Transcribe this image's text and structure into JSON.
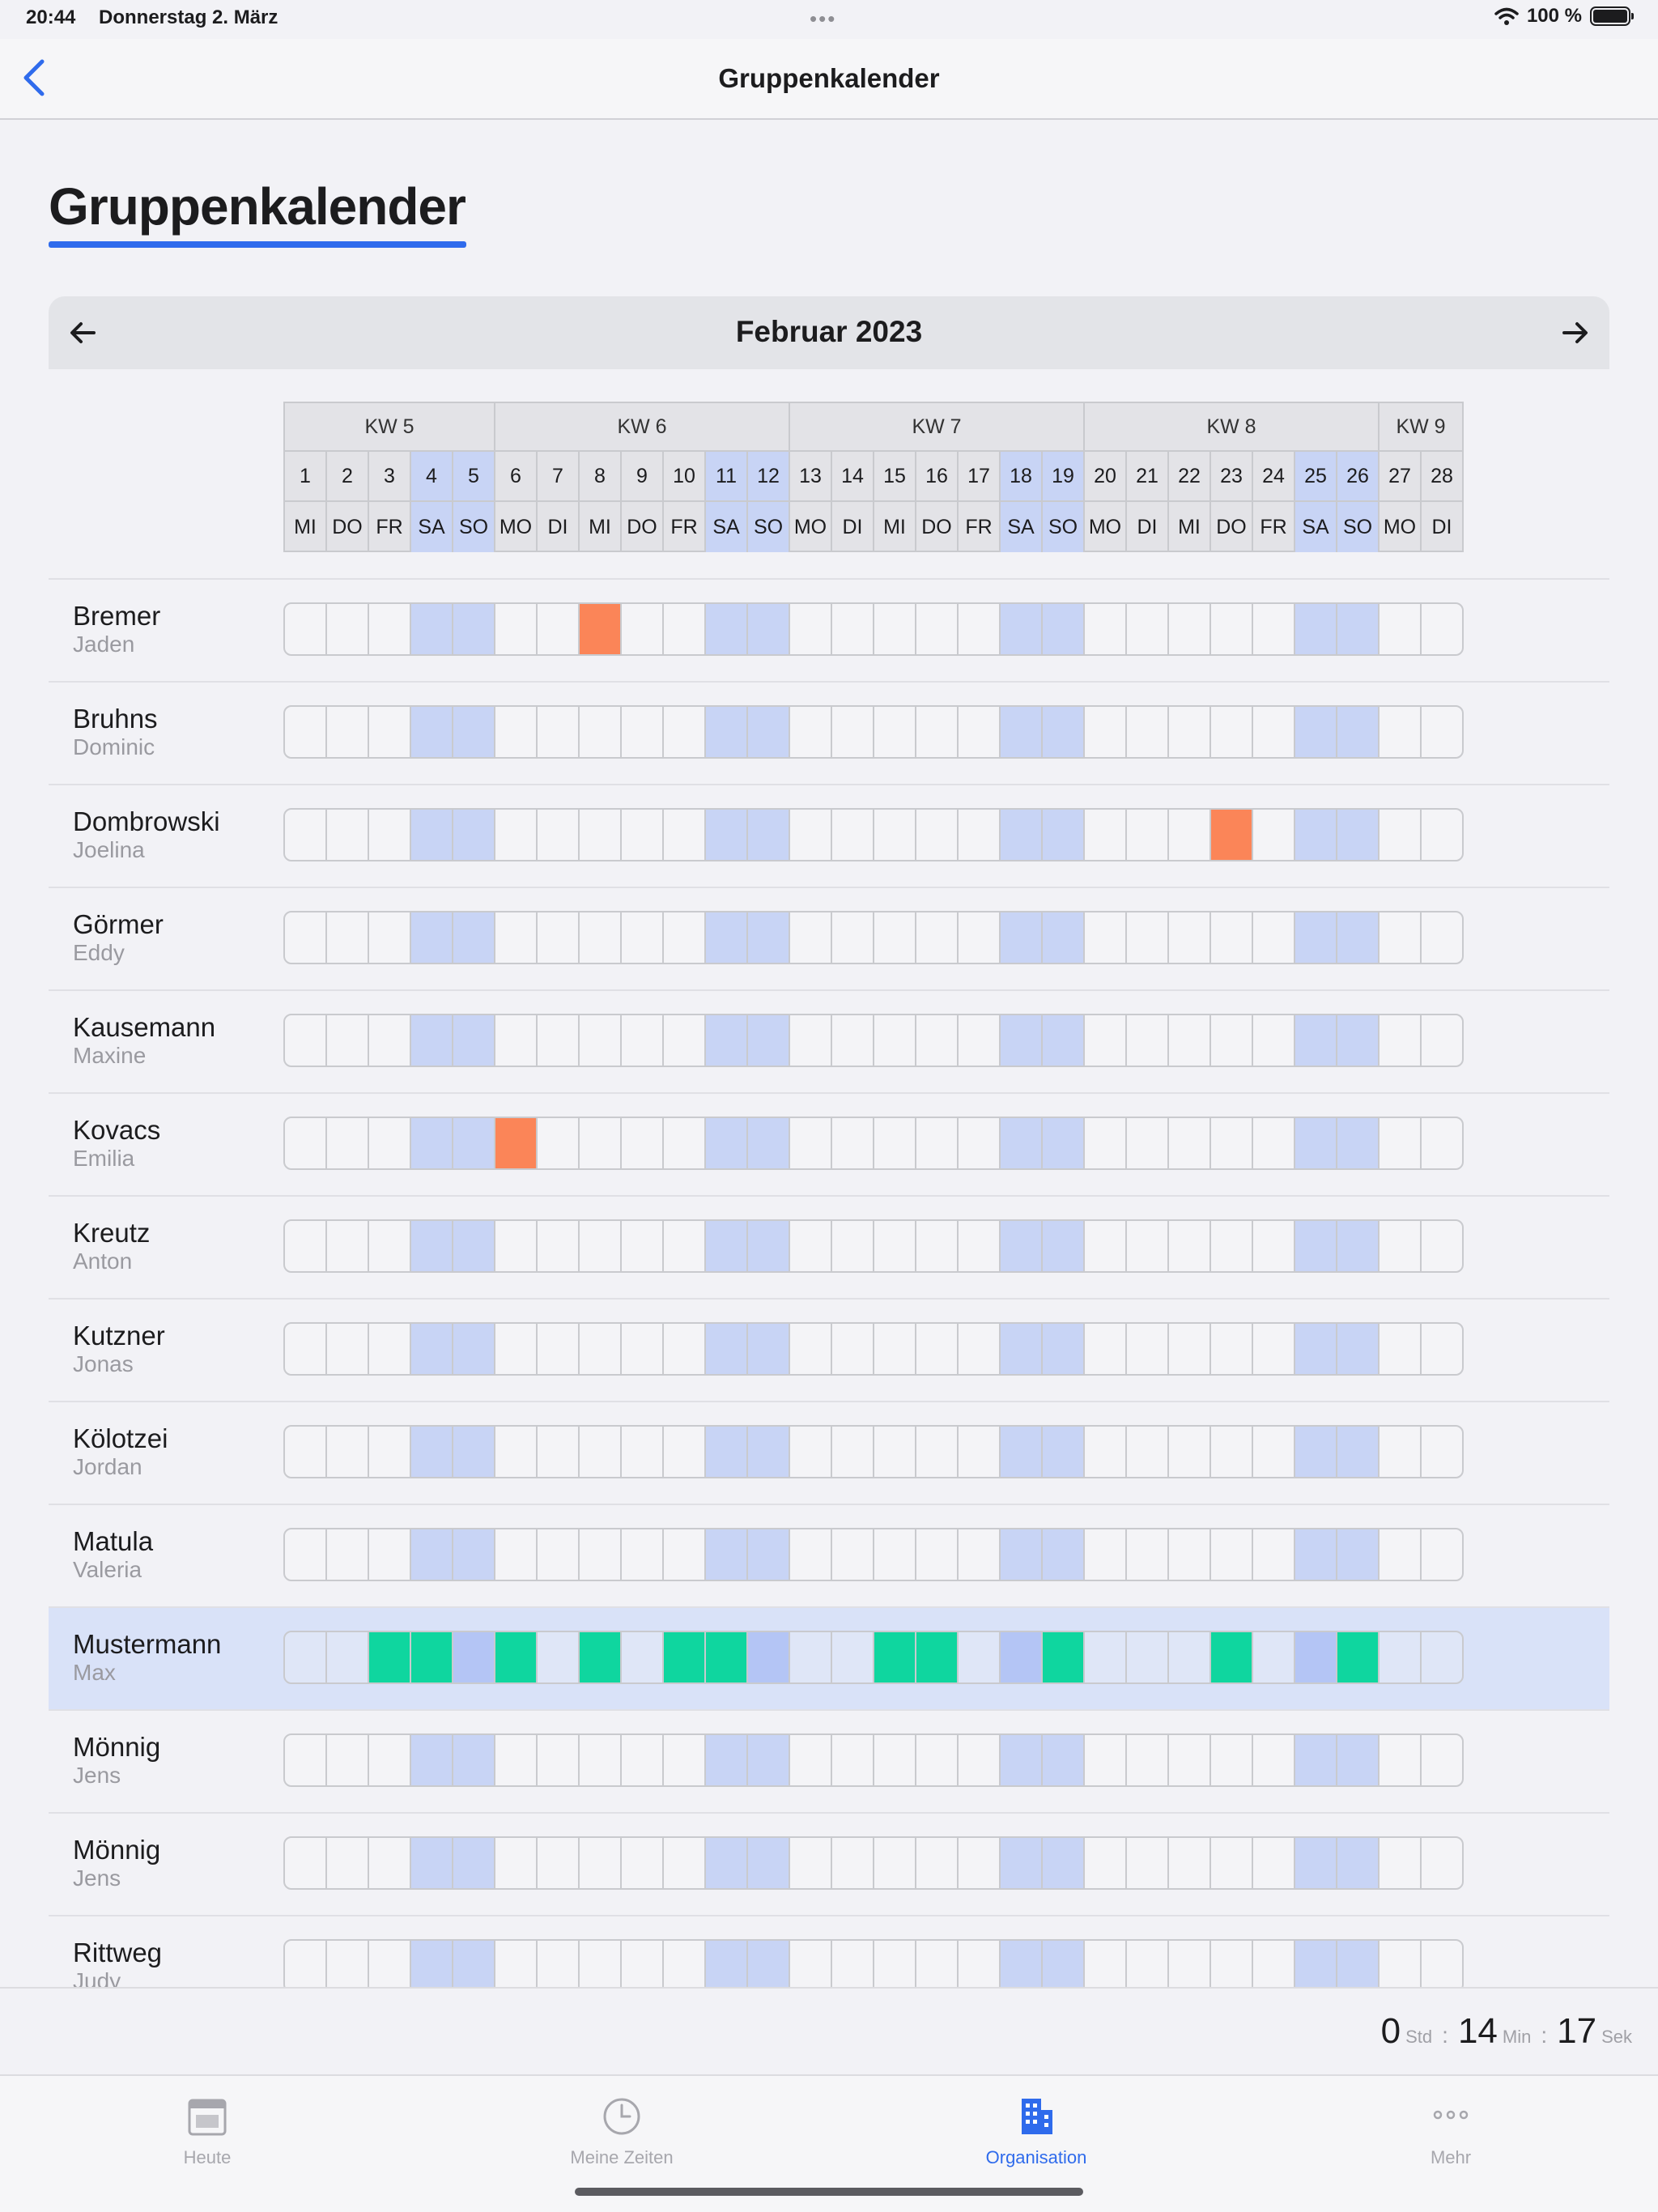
{
  "status_bar": {
    "time": "20:44",
    "date": "Donnerstag 2. März",
    "battery": "100 %"
  },
  "nav": {
    "title": "Gruppenkalender"
  },
  "page": {
    "title": "Gruppenkalender"
  },
  "calendar": {
    "month": "Februar 2023",
    "weeks": [
      {
        "label": "KW 5",
        "days": 5
      },
      {
        "label": "KW 6",
        "days": 7
      },
      {
        "label": "KW 7",
        "days": 7
      },
      {
        "label": "KW 8",
        "days": 7
      },
      {
        "label": "KW 9",
        "days": 2
      }
    ],
    "days": [
      {
        "num": "1",
        "dow": "MI"
      },
      {
        "num": "2",
        "dow": "DO"
      },
      {
        "num": "3",
        "dow": "FR"
      },
      {
        "num": "4",
        "dow": "SA"
      },
      {
        "num": "5",
        "dow": "SO"
      },
      {
        "num": "6",
        "dow": "MO"
      },
      {
        "num": "7",
        "dow": "DI"
      },
      {
        "num": "8",
        "dow": "MI"
      },
      {
        "num": "9",
        "dow": "DO"
      },
      {
        "num": "10",
        "dow": "FR"
      },
      {
        "num": "11",
        "dow": "SA"
      },
      {
        "num": "12",
        "dow": "SO"
      },
      {
        "num": "13",
        "dow": "MO"
      },
      {
        "num": "14",
        "dow": "DI"
      },
      {
        "num": "15",
        "dow": "MI"
      },
      {
        "num": "16",
        "dow": "DO"
      },
      {
        "num": "17",
        "dow": "FR"
      },
      {
        "num": "18",
        "dow": "SA"
      },
      {
        "num": "19",
        "dow": "SO"
      },
      {
        "num": "20",
        "dow": "MO"
      },
      {
        "num": "21",
        "dow": "DI"
      },
      {
        "num": "22",
        "dow": "MI"
      },
      {
        "num": "23",
        "dow": "DO"
      },
      {
        "num": "24",
        "dow": "FR"
      },
      {
        "num": "25",
        "dow": "SA"
      },
      {
        "num": "26",
        "dow": "SO"
      },
      {
        "num": "27",
        "dow": "MO"
      },
      {
        "num": "28",
        "dow": "DI"
      }
    ],
    "colors": {
      "weekend": "#c8d4f5",
      "absent": "#fb8558",
      "present": "#0fd69f",
      "accent": "#2f6bec"
    },
    "employees": [
      {
        "last": "Bremer",
        "first": "Jaden",
        "absent": [
          8
        ],
        "present": []
      },
      {
        "last": "Bruhns",
        "first": "Dominic",
        "absent": [],
        "present": []
      },
      {
        "last": "Dombrowski",
        "first": "Joelina",
        "absent": [
          23
        ],
        "present": []
      },
      {
        "last": "Görmer",
        "first": "Eddy",
        "absent": [],
        "present": []
      },
      {
        "last": "Kausemann",
        "first": "Maxine",
        "absent": [],
        "present": []
      },
      {
        "last": "Kovacs",
        "first": "Emilia",
        "absent": [
          6
        ],
        "present": []
      },
      {
        "last": "Kreutz",
        "first": "Anton",
        "absent": [],
        "present": []
      },
      {
        "last": "Kutzner",
        "first": "Jonas",
        "absent": [],
        "present": []
      },
      {
        "last": "Kölotzei",
        "first": "Jordan",
        "absent": [],
        "present": []
      },
      {
        "last": "Matula",
        "first": "Valeria",
        "absent": [],
        "present": []
      },
      {
        "last": "Mustermann",
        "first": "Max",
        "absent": [],
        "present": [
          3,
          4,
          6,
          8,
          10,
          11,
          15,
          16,
          19,
          23,
          26
        ],
        "highlight": true
      },
      {
        "last": "Mönnig",
        "first": "Jens",
        "absent": [],
        "present": []
      },
      {
        "last": "Mönnig",
        "first": "Jens",
        "absent": [],
        "present": []
      },
      {
        "last": "Rittweg",
        "first": "Judy",
        "absent": [],
        "present": []
      }
    ]
  },
  "timer": {
    "hours": "0",
    "hours_unit": "Std",
    "minutes": "14",
    "minutes_unit": "Min",
    "seconds": "17",
    "seconds_unit": "Sek",
    "separator": ":"
  },
  "tabs": [
    {
      "label": "Heute",
      "icon": "calendar-icon"
    },
    {
      "label": "Meine Zeiten",
      "icon": "clock-icon"
    },
    {
      "label": "Organisation",
      "icon": "building-icon",
      "active": true
    },
    {
      "label": "Mehr",
      "icon": "more-dots-icon"
    }
  ]
}
